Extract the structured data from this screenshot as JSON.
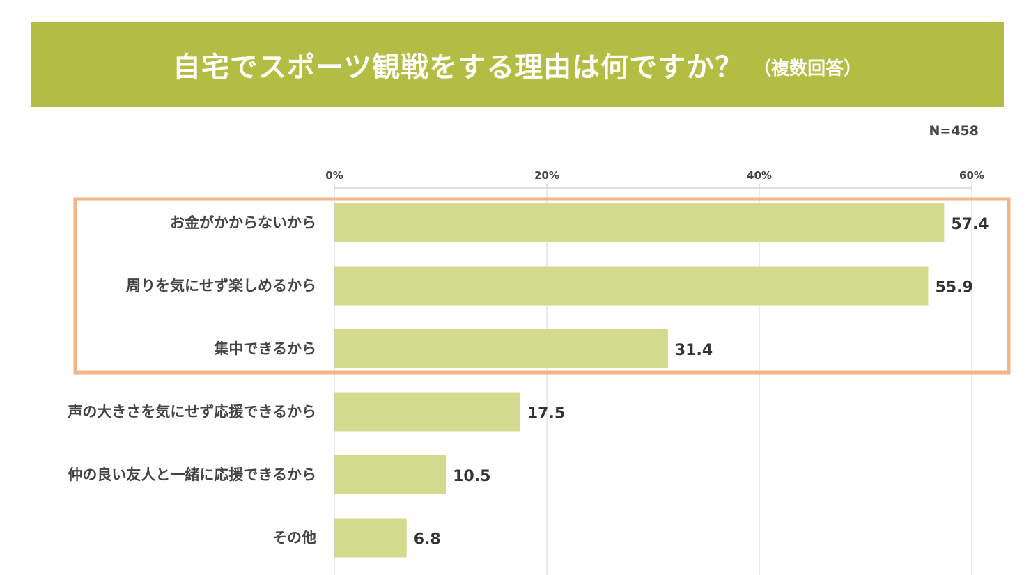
{
  "title": "自宅でスポーツ観戦をする理由は何ですか？",
  "subtitle": "（複数回答）",
  "sample_size": "N=458",
  "colors": {
    "banner": "#b4bd43",
    "bar": "#d1da8d",
    "highlight": "#f0b589",
    "gridline": "#d6d6d6"
  },
  "chart_data": {
    "type": "bar",
    "orientation": "horizontal",
    "categories": [
      "お金がかからないから",
      "周りを気にせず楽しめるから",
      "集中できるから",
      "声の大きさを気にせず応援できるから",
      "仲の良い友人と一緒に応援できるから",
      "その他"
    ],
    "values": [
      57.4,
      55.9,
      31.4,
      17.5,
      10.5,
      6.8
    ],
    "value_labels": [
      "57.4",
      "55.9",
      "31.4",
      "17.5",
      "10.5",
      "6.8"
    ],
    "xlim": [
      0,
      60
    ],
    "ticks": [
      0,
      20,
      40,
      60
    ],
    "tick_labels": [
      "0%",
      "20%",
      "40%",
      "60%"
    ],
    "axis_position": "top",
    "grid": true,
    "highlighted_categories": [
      0,
      1,
      2
    ]
  }
}
